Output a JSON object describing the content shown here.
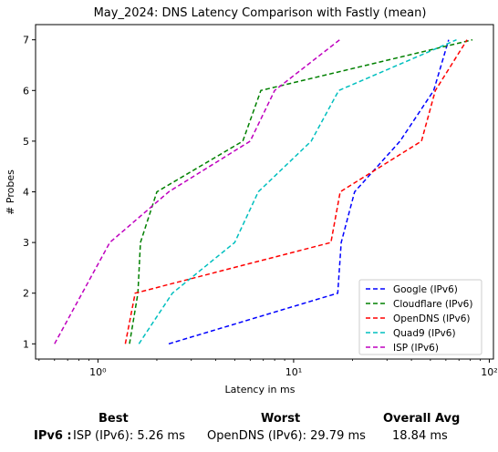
{
  "chart_data": {
    "type": "line",
    "title": "May_2024: DNS Latency Comparison with Fastly (mean)",
    "xlabel": "Latency in ms",
    "ylabel": "# Probes",
    "xscale": "log",
    "xlim": [
      0.48,
      105
    ],
    "ylim": [
      0.7,
      7.3
    ],
    "x_ticks": [
      {
        "value": 1,
        "label": "10⁰"
      },
      {
        "value": 10,
        "label": "10¹"
      },
      {
        "value": 100,
        "label": "10²"
      }
    ],
    "y_ticks": [
      1,
      2,
      3,
      4,
      5,
      6,
      7
    ],
    "legend_position": "lower-right",
    "series": [
      {
        "name": "Google (IPv6)",
        "color": "#0000ff",
        "points": [
          [
            2.3,
            1
          ],
          [
            16.8,
            2
          ],
          [
            17.5,
            3
          ],
          [
            20.5,
            4
          ],
          [
            35,
            5
          ],
          [
            52,
            6
          ],
          [
            62,
            7
          ]
        ]
      },
      {
        "name": "Cloudflare (IPv6)",
        "color": "#008000",
        "points": [
          [
            1.45,
            1
          ],
          [
            1.6,
            2
          ],
          [
            1.65,
            3
          ],
          [
            2.0,
            4
          ],
          [
            5.5,
            5
          ],
          [
            6.8,
            6
          ],
          [
            82,
            7
          ]
        ]
      },
      {
        "name": "OpenDNS (IPv6)",
        "color": "#ff0000",
        "points": [
          [
            1.38,
            1
          ],
          [
            1.55,
            2
          ],
          [
            15.5,
            3
          ],
          [
            17.3,
            4
          ],
          [
            45,
            5
          ],
          [
            53,
            6
          ],
          [
            77,
            7
          ]
        ]
      },
      {
        "name": "Quad9 (IPv6)",
        "color": "#00bfbf",
        "points": [
          [
            1.62,
            1
          ],
          [
            2.4,
            2
          ],
          [
            5.0,
            3
          ],
          [
            6.6,
            4
          ],
          [
            12.3,
            5
          ],
          [
            17,
            6
          ],
          [
            68,
            7
          ]
        ]
      },
      {
        "name": "ISP (IPv6)",
        "color": "#bf00bf",
        "points": [
          [
            0.6,
            1
          ],
          [
            1.15,
            3
          ],
          [
            2.3,
            4
          ],
          [
            6.0,
            5
          ],
          [
            8.0,
            6
          ],
          [
            17.2,
            7
          ]
        ]
      }
    ]
  },
  "summary": {
    "headers": {
      "best": "Best",
      "worst": "Worst",
      "avg": "Overall Avg"
    },
    "row_label": "IPv6 :",
    "best": "ISP (IPv6): 5.26 ms",
    "worst": "OpenDNS (IPv6): 29.79 ms",
    "avg": "18.84 ms"
  }
}
